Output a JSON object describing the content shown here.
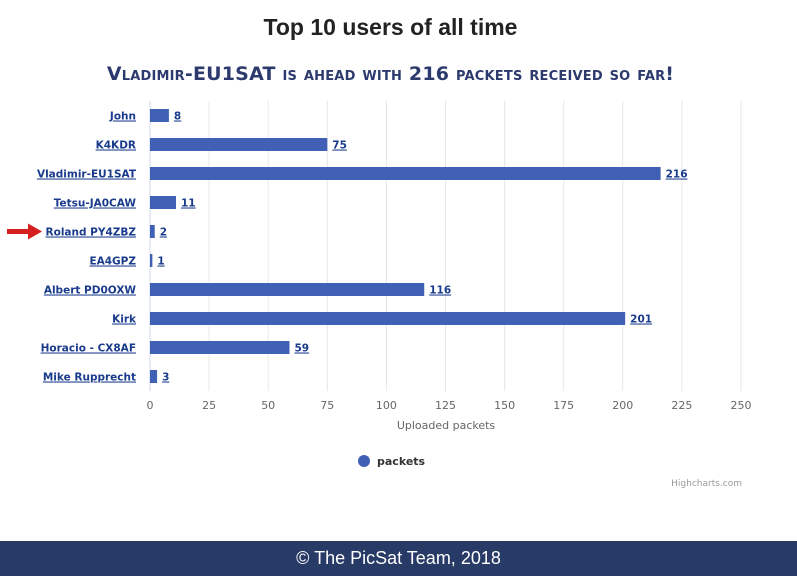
{
  "page": {
    "title": "Top 10 users of all time",
    "subtitle": "Vladimir-EU1SAT is ahead with 216 packets received so far!",
    "footer": "© The PicSat Team, 2018"
  },
  "chart_data": {
    "type": "bar",
    "orientation": "horizontal",
    "categories": [
      "John",
      "K4KDR",
      "Vladimir-EU1SAT",
      "Tetsu-JA0CAW",
      "Roland PY4ZBZ",
      "EA4GPZ",
      "Albert PD0OXW",
      "Kirk",
      "Horacio - CX8AF",
      "Mike Rupprecht"
    ],
    "series": [
      {
        "name": "packets",
        "values": [
          8,
          75,
          216,
          11,
          2,
          1,
          116,
          201,
          59,
          3
        ],
        "color": "#4060b5"
      }
    ],
    "xlabel": "Uploaded packets",
    "xlim": [
      0,
      250
    ],
    "ticks": [
      "0",
      "25",
      "50",
      "75",
      "100",
      "125",
      "150",
      "175",
      "200",
      "225",
      "250"
    ],
    "grid": true,
    "legend_position": "bottom-center",
    "credits": "Highcharts.com",
    "highlighted_category": "Roland PY4ZBZ",
    "highlight_color": "#d62020"
  }
}
